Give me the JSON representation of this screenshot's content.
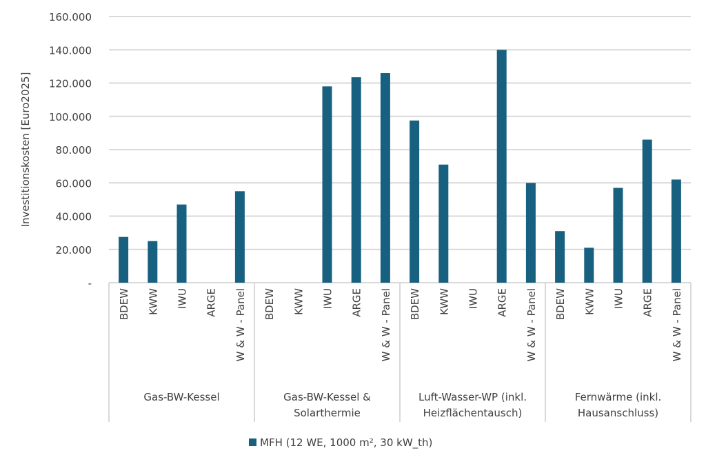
{
  "chart_data": {
    "type": "bar",
    "title": "",
    "ylabel": "Investitionskosten [Euro2025]",
    "xlabel": "",
    "ylim": [
      0,
      160000
    ],
    "yticks": [
      0,
      20000,
      40000,
      60000,
      80000,
      100000,
      120000,
      140000,
      160000
    ],
    "ytick_labels": [
      "-",
      "20.000",
      "40.000",
      "60.000",
      "80.000",
      "100.000",
      "120.000",
      "140.000",
      "160.000"
    ],
    "grid": true,
    "groups": [
      {
        "label": [
          "Gas-BW-Kessel"
        ],
        "categories": [
          "BDEW",
          "KWW",
          "IWU",
          "ARGE",
          "W & W - Panel"
        ],
        "values": [
          27500,
          25000,
          47000,
          null,
          55000
        ]
      },
      {
        "label": [
          "Gas-BW-Kessel &",
          "Solarthermie"
        ],
        "categories": [
          "BDEW",
          "KWW",
          "IWU",
          "ARGE",
          "W & W - Panel"
        ],
        "values": [
          null,
          null,
          118000,
          123500,
          126000
        ]
      },
      {
        "label": [
          "Luft-Wasser-WP (inkl.",
          "Heizflächentausch)"
        ],
        "categories": [
          "BDEW",
          "KWW",
          "IWU",
          "ARGE",
          "W & W - Panel"
        ],
        "values": [
          97500,
          71000,
          null,
          140000,
          60000
        ]
      },
      {
        "label": [
          "Fernwärme (inkl.",
          "Hausanschluss)"
        ],
        "categories": [
          "BDEW",
          "KWW",
          "IWU",
          "ARGE",
          "W & W - Panel"
        ],
        "values": [
          31000,
          21000,
          57000,
          86000,
          62000
        ]
      }
    ],
    "series": [
      {
        "name": "MFH (12 WE, 1000 m², 30 kW_th)",
        "color": "#17607f"
      }
    ],
    "legend": "bottom"
  }
}
